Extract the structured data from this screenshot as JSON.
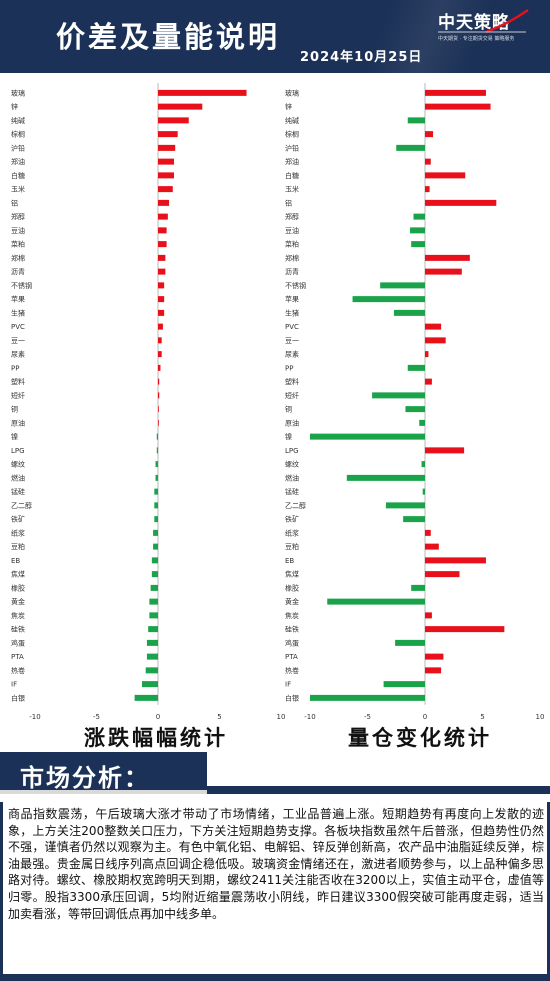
{
  "header": {
    "title": "价差及量能说明",
    "date": "2024年10月25日",
    "logo_name": "中天策略",
    "logo_sub": "中天期货 · 专注期货交易 策略服务"
  },
  "colors": {
    "up": "#e8101a",
    "down": "#1aa34a",
    "navy": "#1c3157"
  },
  "chart_data": [
    {
      "type": "bar",
      "orientation": "horizontal",
      "caption": "涨跌幅幅统计",
      "xlim": [
        -10,
        10
      ],
      "xticks": [
        -10,
        -5,
        0,
        5,
        10
      ],
      "categories": [
        "玻璃",
        "锌",
        "纯碱",
        "棕榈",
        "沪铅",
        "郑油",
        "白糖",
        "玉米",
        "铝",
        "郑醇",
        "豆油",
        "菜粕",
        "郑棉",
        "沥青",
        "不锈钢",
        "苹果",
        "生猪",
        "PVC",
        "豆一",
        "尿素",
        "PP",
        "塑料",
        "短纤",
        "铜",
        "原油",
        "镍",
        "LPG",
        "螺纹",
        "燃油",
        "锰硅",
        "乙二醇",
        "铁矿",
        "纸浆",
        "豆粕",
        "EB",
        "焦煤",
        "橡胶",
        "黄金",
        "焦炭",
        "硅铁",
        "鸡蛋",
        "PTA",
        "热卷",
        "IF",
        "白银"
      ],
      "values": [
        7.2,
        3.6,
        2.5,
        1.6,
        1.4,
        1.3,
        1.3,
        1.2,
        0.9,
        0.8,
        0.7,
        0.7,
        0.6,
        0.6,
        0.5,
        0.5,
        0.5,
        0.4,
        0.3,
        0.3,
        0.2,
        0.1,
        0.1,
        0.05,
        0.05,
        -0.1,
        -0.1,
        -0.2,
        -0.2,
        -0.3,
        -0.3,
        -0.3,
        -0.4,
        -0.4,
        -0.5,
        -0.5,
        -0.6,
        -0.7,
        -0.7,
        -0.8,
        -0.9,
        -0.9,
        -1.0,
        -1.3,
        -1.9
      ]
    },
    {
      "type": "bar",
      "orientation": "horizontal",
      "caption": "量仓变化统计",
      "xlim": [
        -10,
        10
      ],
      "xticks": [
        -10,
        -5,
        0,
        5,
        10
      ],
      "categories": [
        "玻璃",
        "锌",
        "纯碱",
        "棕榈",
        "沪铅",
        "郑油",
        "白糖",
        "玉米",
        "铝",
        "郑醇",
        "豆油",
        "菜粕",
        "郑棉",
        "沥青",
        "不锈钢",
        "苹果",
        "生猪",
        "PVC",
        "豆一",
        "尿素",
        "PP",
        "塑料",
        "短纤",
        "铜",
        "原油",
        "镍",
        "LPG",
        "螺纹",
        "燃油",
        "锰硅",
        "乙二醇",
        "铁矿",
        "纸浆",
        "豆粕",
        "EB",
        "焦煤",
        "橡胶",
        "黄金",
        "焦炭",
        "硅铁",
        "鸡蛋",
        "PTA",
        "热卷",
        "IF",
        "白银"
      ],
      "values": [
        5.3,
        5.7,
        -1.5,
        0.7,
        -2.5,
        0.5,
        3.5,
        0.4,
        6.2,
        -1.0,
        -1.3,
        -1.2,
        3.9,
        3.2,
        -3.9,
        -6.3,
        -2.7,
        1.4,
        1.8,
        0.3,
        -1.5,
        0.6,
        -4.6,
        -1.7,
        -0.5,
        -10,
        3.4,
        -0.3,
        -6.8,
        -0.2,
        -3.4,
        -1.9,
        0.5,
        1.2,
        5.3,
        3.0,
        -1.2,
        -8.5,
        0.6,
        6.9,
        -2.6,
        1.6,
        1.4,
        -3.6,
        -10
      ]
    }
  ],
  "analysis": {
    "heading": "市场分析：",
    "body": "商品指数震荡，午后玻璃大涨才带动了市场情绪，工业品普遍上涨。短期趋势有再度向上发散的迹象，上方关注200整数关口压力，下方关注短期趋势支撑。各板块指数虽然午后普涨，但趋势性仍然不强，谨慎者仍然以观察为主。有色中氧化铝、电解铝、锌反弹创新高，农产品中油脂延续反弹，棕油最强。贵金属日线序列高点回调企稳低吸。玻璃资金情绪还在，激进者顺势参与，以上品种偏多思路对待。螺纹、橡胶期权宽跨明天到期，螺纹2411关注能否收在3200以上，实值主动平仓，虚值等归零。股指3300承压回调，5均附近缩量震荡收小阴线，昨日建议3300假突破可能再度走弱，适当加卖看涨，等带回调低点再加中线多单。"
  }
}
